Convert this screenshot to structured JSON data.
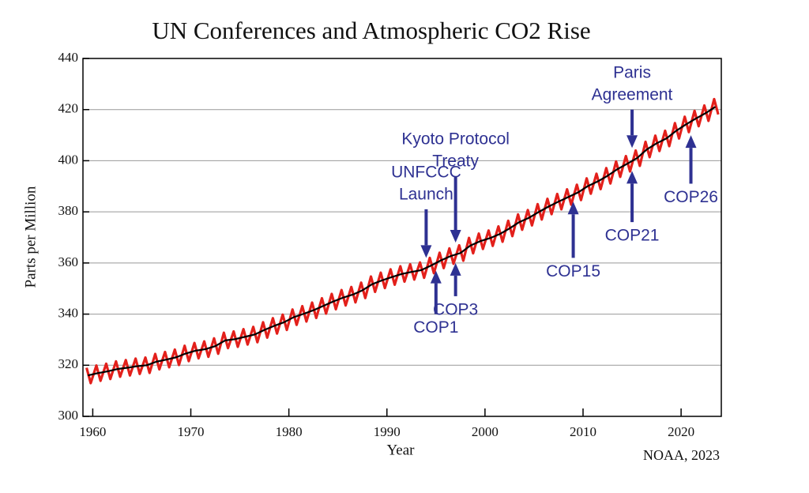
{
  "chart_data": {
    "type": "line",
    "title": "UN Conferences and Atmospheric CO2 Rise",
    "x_label": "Year",
    "y_label": "Parts per Million",
    "source": "NOAA, 2023",
    "xlim": [
      1959,
      2024.1
    ],
    "ylim": [
      300,
      440
    ],
    "xticks": [
      1960,
      1970,
      1980,
      1990,
      2000,
      2010,
      2020
    ],
    "yticks": [
      300,
      320,
      340,
      360,
      380,
      400,
      420,
      440
    ],
    "grid": true,
    "series": [
      {
        "color": "#e3201b",
        "x": [
          1959.37,
          1959.79,
          1960.37,
          1960.79,
          1961.37,
          1961.79,
          1962.37,
          1962.79,
          1963.37,
          1963.79,
          1964.37,
          1964.79,
          1965.37,
          1965.79,
          1966.37,
          1966.79,
          1967.37,
          1967.79,
          1968.37,
          1968.79,
          1969.37,
          1969.79,
          1970.37,
          1970.79,
          1971.37,
          1971.79,
          1972.37,
          1972.79,
          1973.37,
          1973.79,
          1974.37,
          1974.79,
          1975.37,
          1975.79,
          1976.37,
          1976.79,
          1977.37,
          1977.79,
          1978.37,
          1978.79,
          1979.37,
          1979.79,
          1980.37,
          1980.79,
          1981.37,
          1981.79,
          1982.37,
          1982.79,
          1983.37,
          1983.79,
          1984.37,
          1984.79,
          1985.37,
          1985.79,
          1986.37,
          1986.79,
          1987.37,
          1987.79,
          1988.37,
          1988.79,
          1989.37,
          1989.79,
          1990.37,
          1990.79,
          1991.37,
          1991.79,
          1992.37,
          1992.79,
          1993.37,
          1993.79,
          1994.37,
          1994.79,
          1995.37,
          1995.79,
          1996.37,
          1996.79,
          1997.37,
          1997.79,
          1998.37,
          1998.79,
          1999.37,
          1999.79,
          2000.37,
          2000.79,
          2001.37,
          2001.79,
          2002.37,
          2002.79,
          2003.37,
          2003.79,
          2004.37,
          2004.79,
          2005.37,
          2005.79,
          2006.37,
          2006.79,
          2007.37,
          2007.79,
          2008.37,
          2008.79,
          2009.37,
          2009.79,
          2010.37,
          2010.79,
          2011.37,
          2011.79,
          2012.37,
          2012.79,
          2013.37,
          2013.79,
          2014.37,
          2014.79,
          2015.37,
          2015.79,
          2016.37,
          2016.79,
          2017.37,
          2017.79,
          2018.37,
          2018.79,
          2019.37,
          2019.79,
          2020.37,
          2020.79,
          2021.37,
          2021.79,
          2022.37,
          2022.79,
          2023.37,
          2023.79
        ],
        "values": [
          319.0,
          313.0,
          319.9,
          313.9,
          320.6,
          314.6,
          321.5,
          315.5,
          322.0,
          316.0,
          322.6,
          316.6,
          323.0,
          317.0,
          324.4,
          318.4,
          325.2,
          319.2,
          326.1,
          320.1,
          327.6,
          321.6,
          328.7,
          322.7,
          329.3,
          323.3,
          330.5,
          324.5,
          332.7,
          326.7,
          333.2,
          327.2,
          334.1,
          328.1,
          335.0,
          329.0,
          336.8,
          330.8,
          338.4,
          332.4,
          339.8,
          333.8,
          341.8,
          335.8,
          343.1,
          337.1,
          344.5,
          338.5,
          346.2,
          340.2,
          347.9,
          341.9,
          349.4,
          343.4,
          350.6,
          344.6,
          352.3,
          346.3,
          354.7,
          348.7,
          356.2,
          350.2,
          357.5,
          351.5,
          358.7,
          352.7,
          359.5,
          353.5,
          360.2,
          354.2,
          362.0,
          356.0,
          364.0,
          358.0,
          365.7,
          359.7,
          366.9,
          360.9,
          369.8,
          363.8,
          371.5,
          365.5,
          372.7,
          366.7,
          374.3,
          368.3,
          376.5,
          370.5,
          379.0,
          373.0,
          380.7,
          374.7,
          383.0,
          377.0,
          385.1,
          379.1,
          387.0,
          381.0,
          388.8,
          382.8,
          390.6,
          384.6,
          393.1,
          387.1,
          394.9,
          388.9,
          397.1,
          391.1,
          399.7,
          393.7,
          401.8,
          395.8,
          404.0,
          398.0,
          407.4,
          401.4,
          409.8,
          403.8,
          411.7,
          405.7,
          414.7,
          408.7,
          417.2,
          411.2,
          419.5,
          413.5,
          421.6,
          415.6,
          424.1,
          418.1
        ]
      },
      {
        "color": "#000000",
        "x": [
          1959.5,
          1960.5,
          1961.5,
          1962.5,
          1963.5,
          1964.5,
          1965.5,
          1966.5,
          1967.5,
          1968.5,
          1969.5,
          1970.5,
          1971.5,
          1972.5,
          1973.5,
          1974.5,
          1975.5,
          1976.5,
          1977.5,
          1978.5,
          1979.5,
          1980.5,
          1981.5,
          1982.5,
          1983.5,
          1984.5,
          1985.5,
          1986.5,
          1987.5,
          1988.5,
          1989.5,
          1990.5,
          1991.5,
          1992.5,
          1993.5,
          1994.5,
          1995.5,
          1996.5,
          1997.5,
          1998.5,
          1999.5,
          2000.5,
          2001.5,
          2002.5,
          2003.5,
          2004.5,
          2005.5,
          2006.5,
          2007.5,
          2008.5,
          2009.5,
          2010.5,
          2011.5,
          2012.5,
          2013.5,
          2014.5,
          2015.5,
          2016.5,
          2017.5,
          2018.5,
          2019.5,
          2020.5,
          2021.5,
          2022.5,
          2023.5
        ],
        "values": [
          316.0,
          316.9,
          317.6,
          318.5,
          319.0,
          319.6,
          320.0,
          321.4,
          322.2,
          323.1,
          324.6,
          325.7,
          326.3,
          327.5,
          329.7,
          330.2,
          331.1,
          332.0,
          333.8,
          335.4,
          336.8,
          338.8,
          340.1,
          341.5,
          343.2,
          344.9,
          346.4,
          347.6,
          349.3,
          351.7,
          353.2,
          354.5,
          355.7,
          356.5,
          357.2,
          359.0,
          361.0,
          362.7,
          363.9,
          366.8,
          368.5,
          369.7,
          371.3,
          373.5,
          376.0,
          377.7,
          380.0,
          382.1,
          384.0,
          385.8,
          387.6,
          390.1,
          391.9,
          394.1,
          396.7,
          398.8,
          401.0,
          404.4,
          406.8,
          408.7,
          411.7,
          414.2,
          416.5,
          418.6,
          421.1
        ]
      }
    ],
    "annotations": [
      {
        "text": [
          "UNFCCC",
          "Launch"
        ],
        "direction": "down",
        "x": 1994,
        "y": 362,
        "y_tail": 381
      },
      {
        "text": [
          "Kyoto Protocol",
          "Treaty"
        ],
        "direction": "down",
        "x": 1997,
        "y": 368,
        "y_tail": 394
      },
      {
        "text": [
          "Paris",
          "Agreement"
        ],
        "direction": "down",
        "x": 2015,
        "y": 405,
        "y_tail": 420
      },
      {
        "text": [
          "COP1"
        ],
        "direction": "up",
        "x": 1995,
        "y": 357,
        "y_tail": 340
      },
      {
        "text": [
          "COP3"
        ],
        "direction": "up",
        "x": 1997,
        "y": 360,
        "y_tail": 347
      },
      {
        "text": [
          "COP15"
        ],
        "direction": "up",
        "x": 2009,
        "y": 384,
        "y_tail": 362
      },
      {
        "text": [
          "COP21"
        ],
        "direction": "up",
        "x": 2015,
        "y": 396,
        "y_tail": 376
      },
      {
        "text": [
          "COP26"
        ],
        "direction": "up",
        "x": 2021,
        "y": 410,
        "y_tail": 391
      }
    ]
  }
}
